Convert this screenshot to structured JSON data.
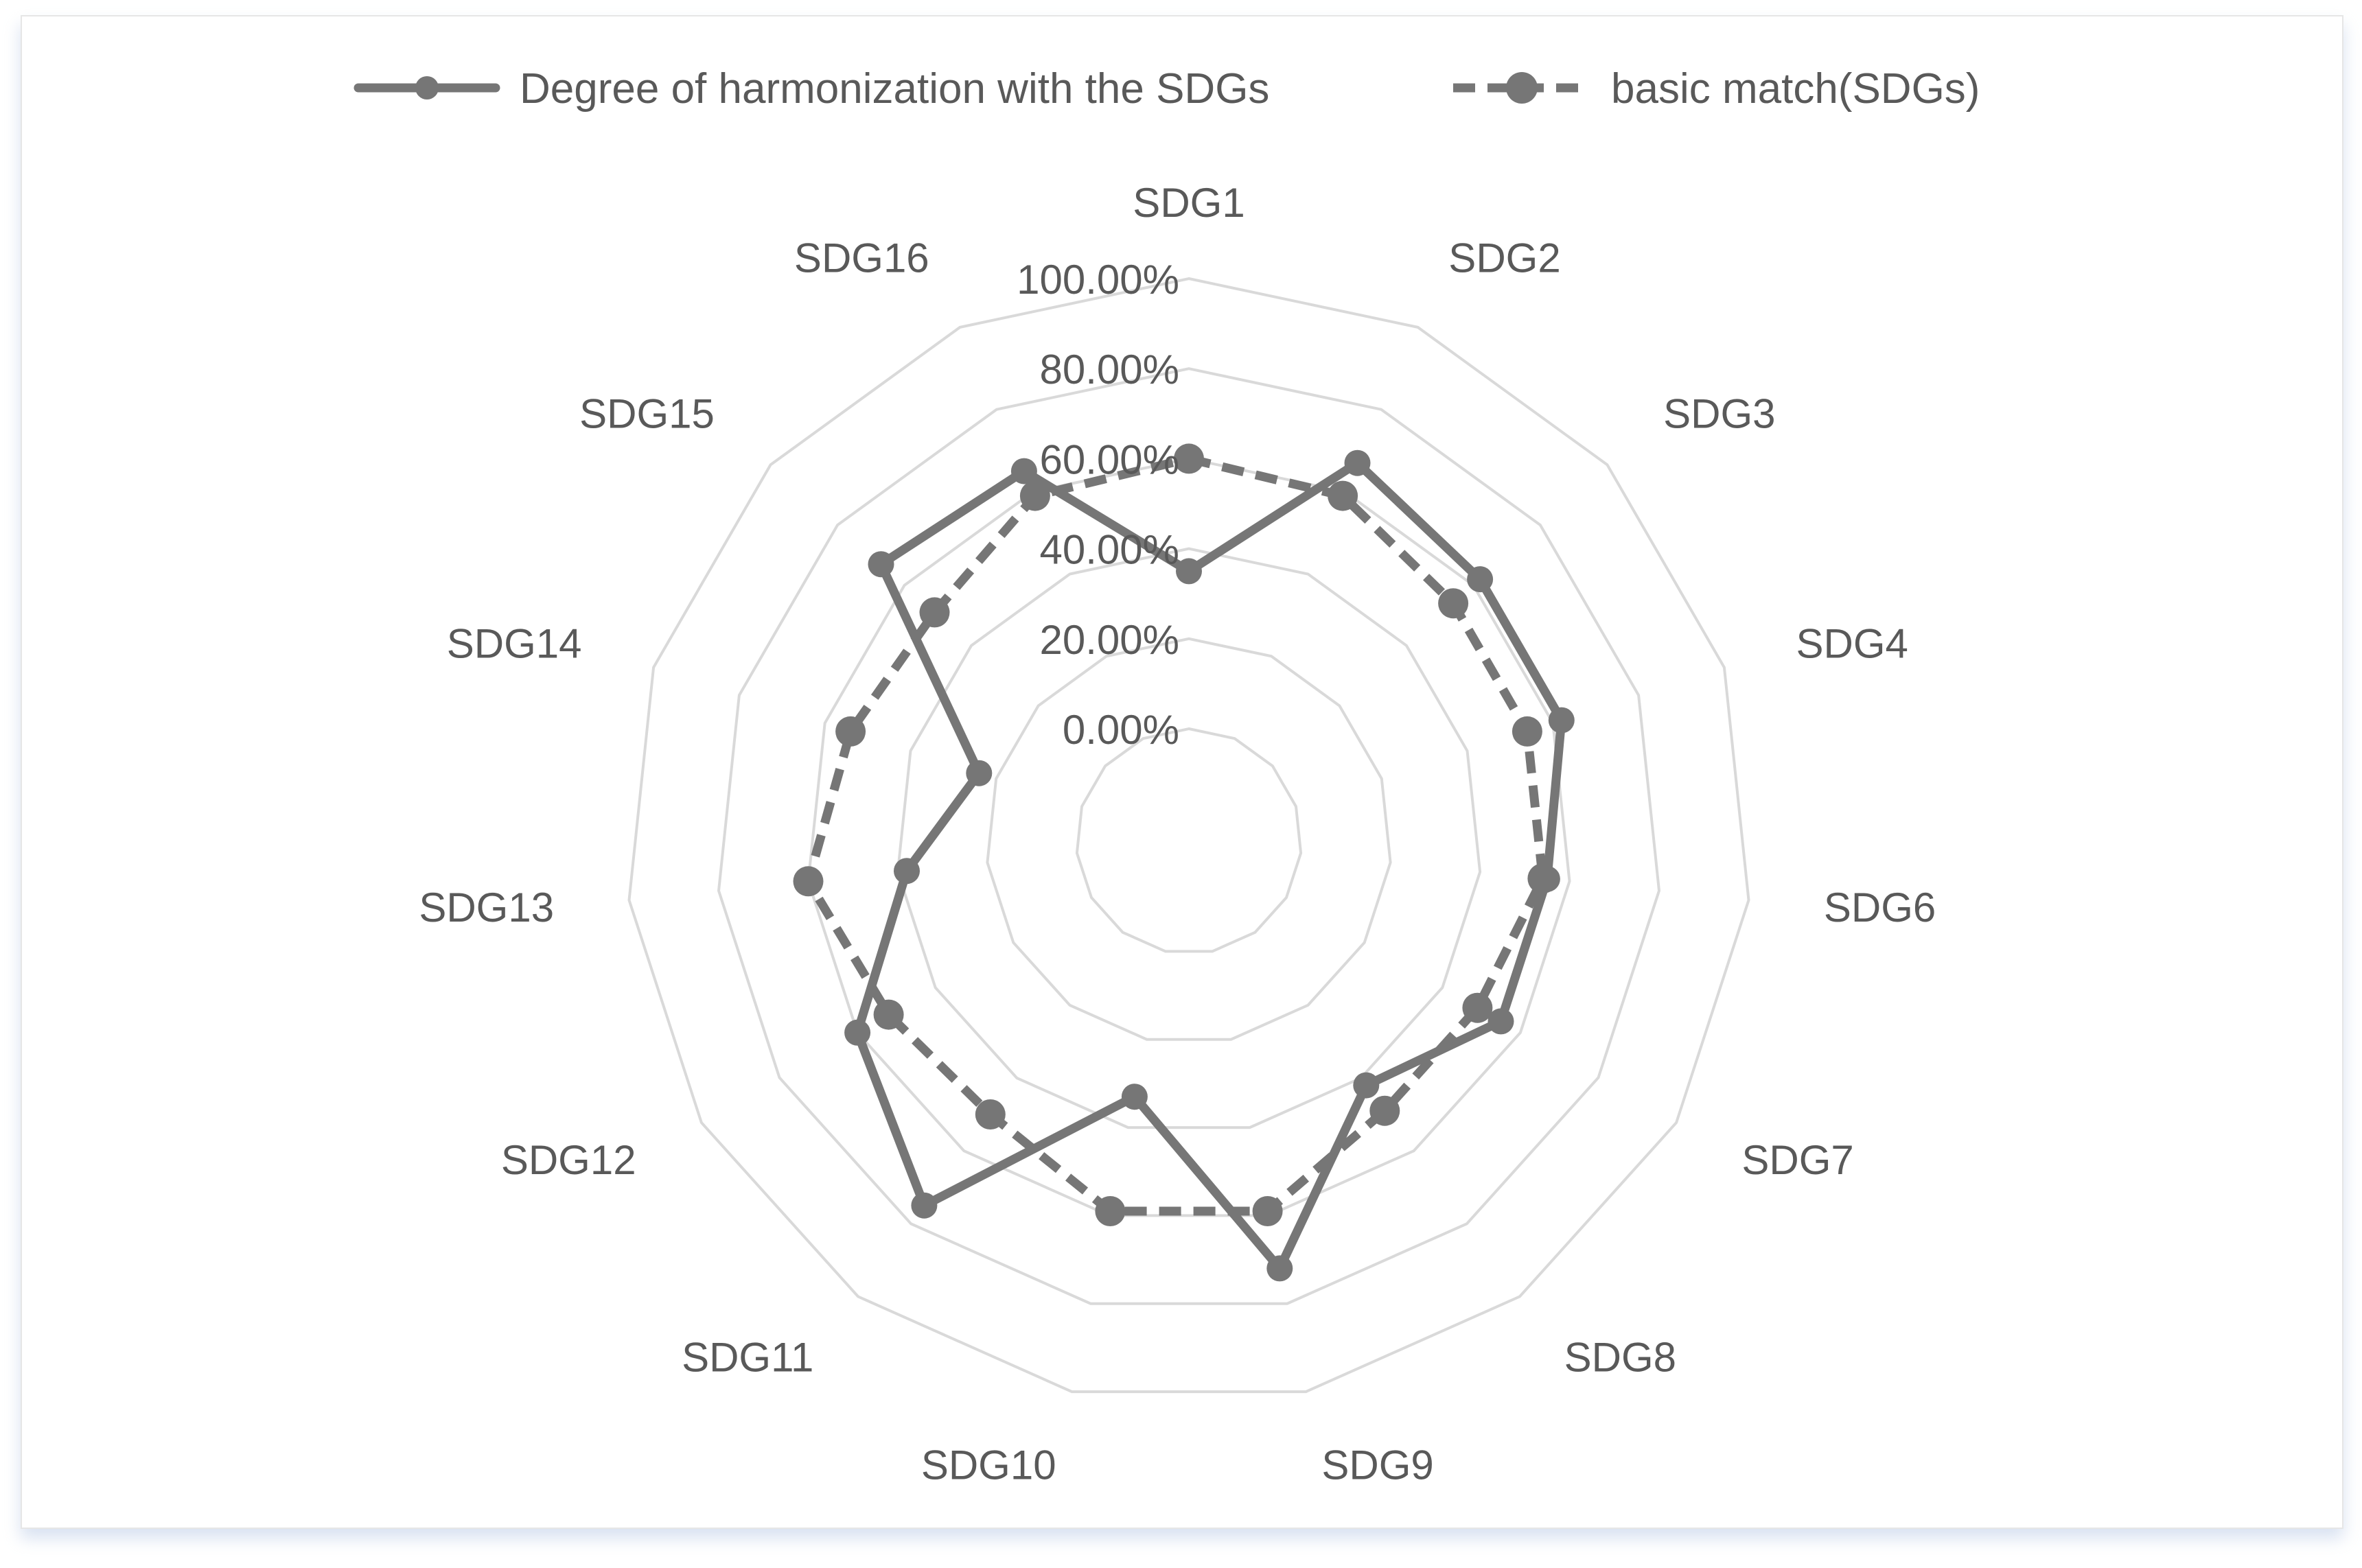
{
  "chart_data": {
    "type": "radar",
    "categories": [
      "SDG1",
      "SDG2",
      "SDG3",
      "SDG4",
      "SDG6",
      "SDG7",
      "SDG8",
      "SDG9",
      "SDG10",
      "SDG11",
      "SDG12",
      "SDG13",
      "SDG14",
      "SDG15",
      "SDG16"
    ],
    "series": [
      {
        "name": "Degree of harmonization with the SDGs",
        "line_style": "solid",
        "color": "#767676",
        "values": [
          0.35,
          0.67,
          0.62,
          0.62,
          0.55,
          0.55,
          0.42,
          0.72,
          0.33,
          0.75,
          0.6,
          0.38,
          0.24,
          0.67,
          0.65
        ]
      },
      {
        "name": "basic match(SDGs)",
        "line_style": "dashed",
        "color": "#767676",
        "values": [
          0.6,
          0.59,
          0.54,
          0.54,
          0.54,
          0.49,
          0.49,
          0.59,
          0.59,
          0.5,
          0.52,
          0.6,
          0.54,
          0.51,
          0.59
        ]
      }
    ],
    "r_ticks": [
      "0.00%",
      "20.00%",
      "40.00%",
      "60.00%",
      "80.00%",
      "100.00%"
    ],
    "r_range": [
      0,
      1
    ],
    "grid": true,
    "grid_color": "#d9d9d9",
    "legend_position": "top"
  }
}
